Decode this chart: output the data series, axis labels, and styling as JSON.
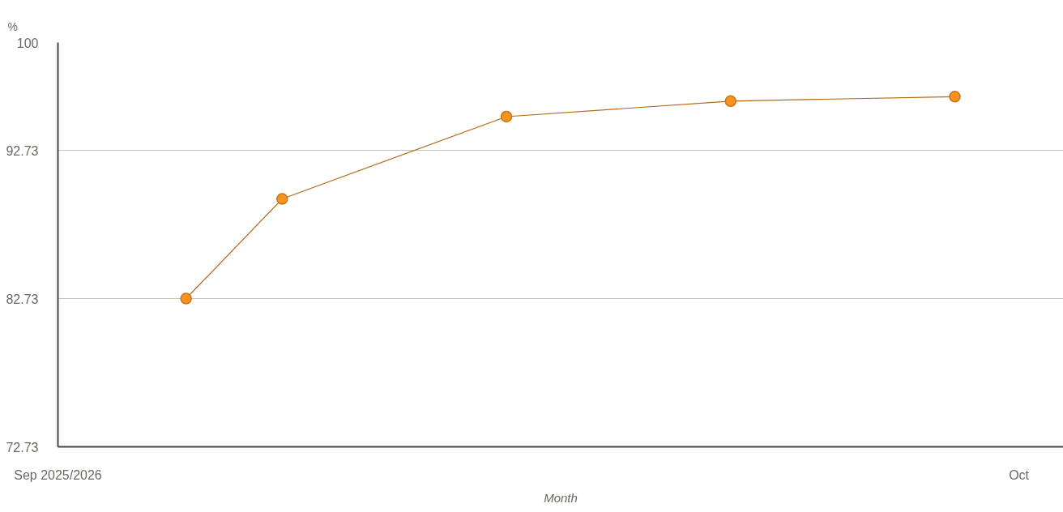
{
  "chart_data": {
    "type": "line",
    "ylabel": "%",
    "xlabel": "Month",
    "x": [
      "2025-09-05",
      "2025-09-08",
      "2025-09-15",
      "2025-09-22",
      "2025-09-29"
    ],
    "series": [
      {
        "color": "#f7931e",
        "values": [
          82.73,
          89.45,
          95.0,
          96.05,
          96.35
        ]
      }
    ],
    "xlim": [
      "2025-09-01",
      "2025-10-02T09:20"
    ],
    "xticks": [
      {
        "value": "2025-09-01",
        "label": "Sep 2025/2026"
      },
      {
        "value": "2025-10-01",
        "label": "Oct"
      }
    ],
    "ylim": [
      72.73,
      100
    ],
    "yticks": [
      72.73,
      82.73,
      92.73,
      100
    ],
    "grid": "y",
    "marker": "circle",
    "line_style": "solid"
  }
}
